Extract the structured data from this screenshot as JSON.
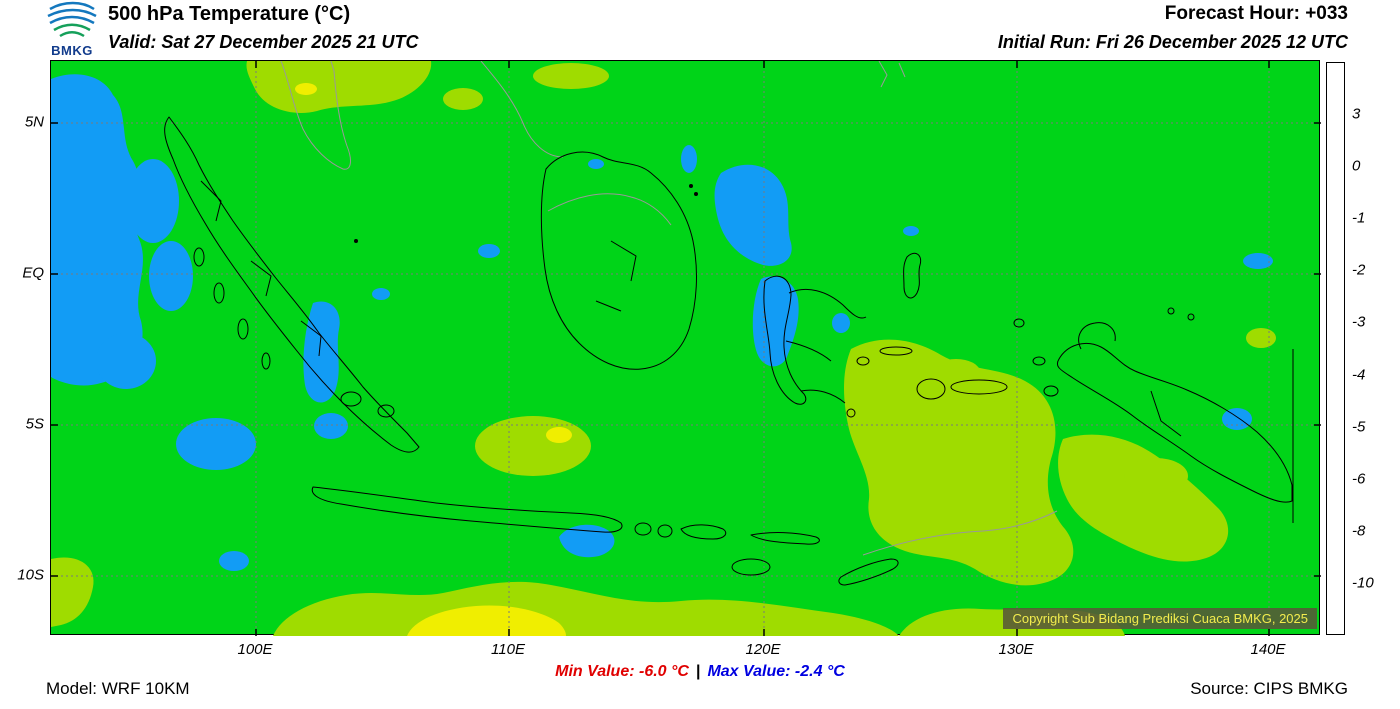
{
  "header": {
    "logo_text": "BMKG",
    "title": "500 hPa Temperature (°C)",
    "valid": "Valid: Sat 27 December 2025 21 UTC",
    "forecast_hour": "Forecast Hour: +033",
    "initial_run": "Initial Run: Fri 26 December 2025 12 UTC"
  },
  "map": {
    "lat_labels": [
      "5N",
      "EQ",
      "5S",
      "10S"
    ],
    "lon_labels": [
      "100E",
      "110E",
      "120E",
      "130E",
      "140E"
    ],
    "copyright": "Copyright Sub Bidang Prediksi Cuaca BMKG, 2025",
    "field_colors": {
      "green": "#00d418",
      "blue": "#129cf5",
      "ygreen": "#9fdc00",
      "yellow": "#f0ee00"
    }
  },
  "colorbar": {
    "labels": [
      "3",
      "0",
      "-1",
      "-2",
      "-3",
      "-4",
      "-5",
      "-6",
      "-8",
      "-10"
    ],
    "colors": [
      "#a00000",
      "#fa0000",
      "#ff9500",
      "#ffcc00",
      "#f0ee00",
      "#9fdc00",
      "#00d418",
      "#129cf5",
      "#2353e6",
      "#4134c0",
      "#b414cd"
    ]
  },
  "footer": {
    "model": "Model: WRF 10KM",
    "min_label": "Min Value: -6.0 °C",
    "separator": "|",
    "max_label": "Max Value: -2.4 °C",
    "source": "Source: CIPS BMKG"
  }
}
